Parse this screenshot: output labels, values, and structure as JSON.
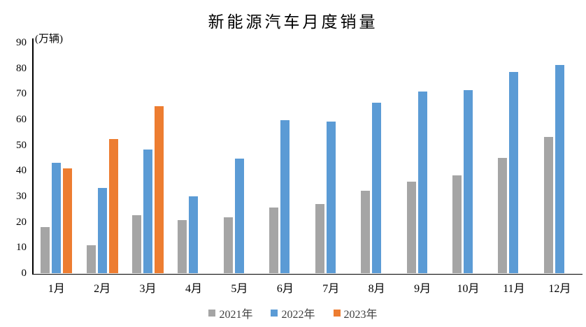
{
  "chart_data": {
    "type": "bar",
    "title": "新能源汽车月度销量",
    "unit_label": "(万辆)",
    "categories": [
      "1月",
      "2月",
      "3月",
      "4月",
      "5月",
      "6月",
      "7月",
      "8月",
      "9月",
      "10月",
      "11月",
      "12月"
    ],
    "series": [
      {
        "name": "2021年",
        "color": "#A5A5A5",
        "values": [
          17.9,
          11.0,
          22.6,
          20.6,
          21.7,
          25.6,
          27.1,
          32.1,
          35.7,
          38.3,
          45.0,
          53.1
        ]
      },
      {
        "name": "2022年",
        "color": "#5B9BD5",
        "values": [
          43.1,
          33.4,
          48.4,
          29.9,
          44.7,
          59.6,
          59.3,
          66.6,
          70.8,
          71.4,
          78.6,
          81.4
        ]
      },
      {
        "name": "2023年",
        "color": "#ED7D31",
        "values": [
          40.8,
          52.5,
          65.3,
          null,
          null,
          null,
          null,
          null,
          null,
          null,
          null,
          null
        ]
      }
    ],
    "ylim": [
      0,
      90
    ],
    "yticks": [
      0,
      10,
      20,
      30,
      40,
      50,
      60,
      70,
      80,
      90
    ],
    "grid": false,
    "legend_position": "bottom",
    "axis_color": "#000000",
    "background_color": "#ffffff"
  }
}
